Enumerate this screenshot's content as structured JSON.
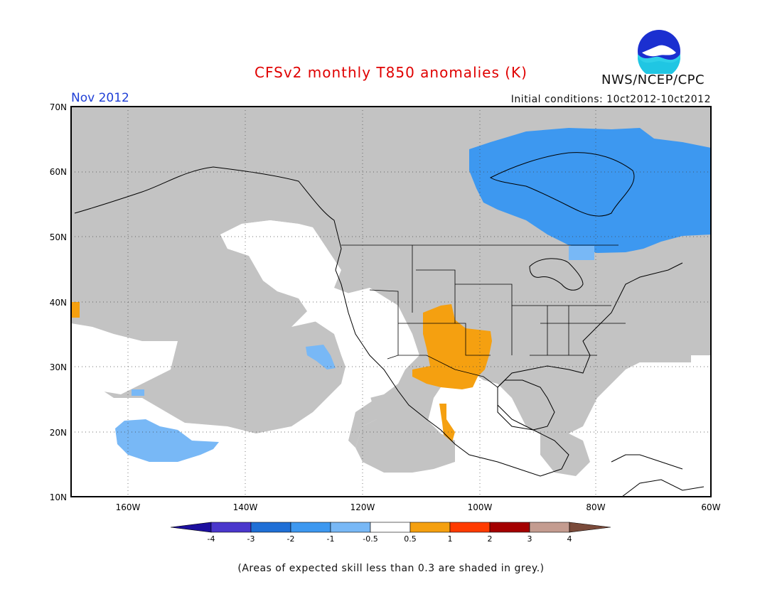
{
  "header": {
    "title": "CFSv2 monthly T850 anomalies (K)",
    "agency": "NWS/NCEP/CPC",
    "logo_text": "NOAA",
    "month": "Nov 2012",
    "initial_conditions": "Initial conditions: 10ct2012-10ct2012"
  },
  "axes": {
    "lat_labels": [
      "70N",
      "60N",
      "50N",
      "40N",
      "30N",
      "20N",
      "10N"
    ],
    "lon_labels": [
      "160W",
      "140W",
      "120W",
      "100W",
      "80W",
      "60W"
    ]
  },
  "colorbar": {
    "labels": [
      "-4",
      "-3",
      "-2",
      "-1",
      "-0.5",
      "0.5",
      "1",
      "2",
      "3",
      "4"
    ],
    "colors": [
      "#1c0f9e",
      "#4a37cc",
      "#1f6fd6",
      "#3d98f0",
      "#78b8f6",
      "#ffffff",
      "#f5a010",
      "#ff3b00",
      "#a40000",
      "#c49c90",
      "#7a4a3a"
    ]
  },
  "palette": {
    "skill_grey": "#c3c3c3",
    "cold_anomaly": "#3d98f0",
    "light_cold": "#78b8f6",
    "warm_anomaly": "#f5a010",
    "title_red": "#e00000",
    "month_blue": "#1f3fd6"
  },
  "footer": {
    "note": "(Areas of expected skill less than 0.3 are shaded in grey.)"
  }
}
